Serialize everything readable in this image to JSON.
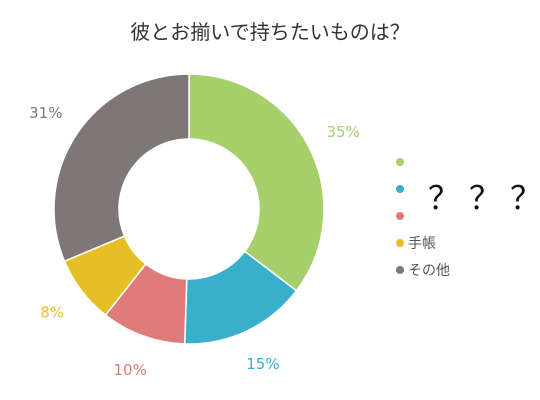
{
  "chart_data": {
    "type": "pie",
    "title": "彼とお揃いで持ちたいものは？",
    "slices": [
      {
        "name": "",
        "value": 35,
        "label": "35%",
        "color": "#a6d06c"
      },
      {
        "name": "",
        "value": 15,
        "label": "15%",
        "color": "#38b0cb"
      },
      {
        "name": "",
        "value": 10,
        "label": "10%",
        "color": "#e07b7b"
      },
      {
        "name": "手帳",
        "value": 8,
        "label": "8%",
        "color": "#e6bf27"
      },
      {
        "name": "その他",
        "value": 31,
        "label": "31%",
        "color": "#7e7777"
      }
    ],
    "legend_position": "right"
  },
  "overlay_text": "？？？"
}
